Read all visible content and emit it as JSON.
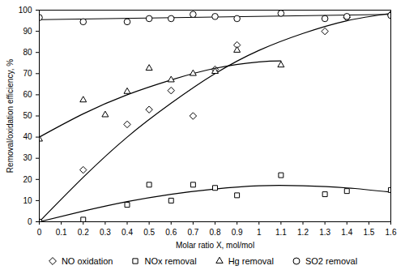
{
  "chart_data": {
    "type": "scatter",
    "x_label": "Molar ratio X, mol/mol",
    "y_label": "Removal/oxidation efficiency, %",
    "xlim": [
      0,
      1.6
    ],
    "xticks": [
      0,
      0.1,
      0.2,
      0.3,
      0.4,
      0.5,
      0.6,
      0.7,
      0.8,
      0.9,
      1,
      1.1,
      1.2,
      1.3,
      1.4,
      1.5,
      1.6
    ],
    "ylim": [
      0,
      100
    ],
    "yticks": [
      0,
      10,
      20,
      30,
      40,
      50,
      60,
      70,
      80,
      90,
      100
    ],
    "grid": false,
    "legend": "bottom",
    "series": [
      {
        "name": "NO oxidation",
        "color": "#000000",
        "marker": "diamond",
        "x": [
          0,
          0.2,
          0.4,
          0.5,
          0.6,
          0.7,
          0.8,
          0.9,
          1.3,
          1.4,
          1.6
        ],
        "values": [
          0,
          24.5,
          46,
          53,
          62,
          50,
          72,
          83.5,
          90,
          96.5,
          98
        ],
        "trend": {
          "x": [
            0,
            0.2,
            0.4,
            0.6,
            0.8,
            1.0,
            1.2,
            1.4,
            1.6
          ],
          "values": [
            0,
            21,
            40,
            56,
            70,
            81,
            89,
            95,
            98.5
          ]
        }
      },
      {
        "name": "NOx removal",
        "color": "#000000",
        "marker": "square",
        "x": [
          0,
          0.2,
          0.4,
          0.5,
          0.6,
          0.7,
          0.8,
          0.9,
          1.1,
          1.3,
          1.4,
          1.6
        ],
        "values": [
          0,
          1,
          8,
          17.5,
          10,
          17.5,
          16,
          12.5,
          22,
          13,
          14.5,
          15
        ],
        "trend": {
          "x": [
            0,
            0.2,
            0.4,
            0.6,
            0.8,
            1.0,
            1.2,
            1.4,
            1.6
          ],
          "values": [
            0,
            5,
            9.5,
            13,
            15.5,
            17,
            17,
            16,
            14
          ]
        }
      },
      {
        "name": "Hg removal",
        "color": "#000000",
        "marker": "triangle",
        "x": [
          0,
          0.2,
          0.3,
          0.4,
          0.5,
          0.6,
          0.7,
          0.8,
          0.9,
          1.1
        ],
        "values": [
          39,
          57.5,
          50.5,
          61.5,
          72.5,
          67,
          70,
          71,
          81,
          74
        ],
        "trend": {
          "x": [
            0,
            0.2,
            0.4,
            0.6,
            0.8,
            1.0,
            1.1
          ],
          "values": [
            40,
            51,
            60,
            67,
            72.5,
            75.5,
            76
          ]
        }
      },
      {
        "name": "SO2 removal",
        "color": "#000000",
        "marker": "circle",
        "x": [
          0,
          0.2,
          0.4,
          0.5,
          0.6,
          0.7,
          0.8,
          0.9,
          1.1,
          1.3,
          1.4,
          1.6
        ],
        "values": [
          96.5,
          94.5,
          94.5,
          96,
          96,
          98,
          97,
          96,
          98.5,
          96,
          97,
          97.5
        ],
        "trend": {
          "x": [
            0,
            1.6
          ],
          "values": [
            95.5,
            98
          ]
        }
      }
    ]
  }
}
